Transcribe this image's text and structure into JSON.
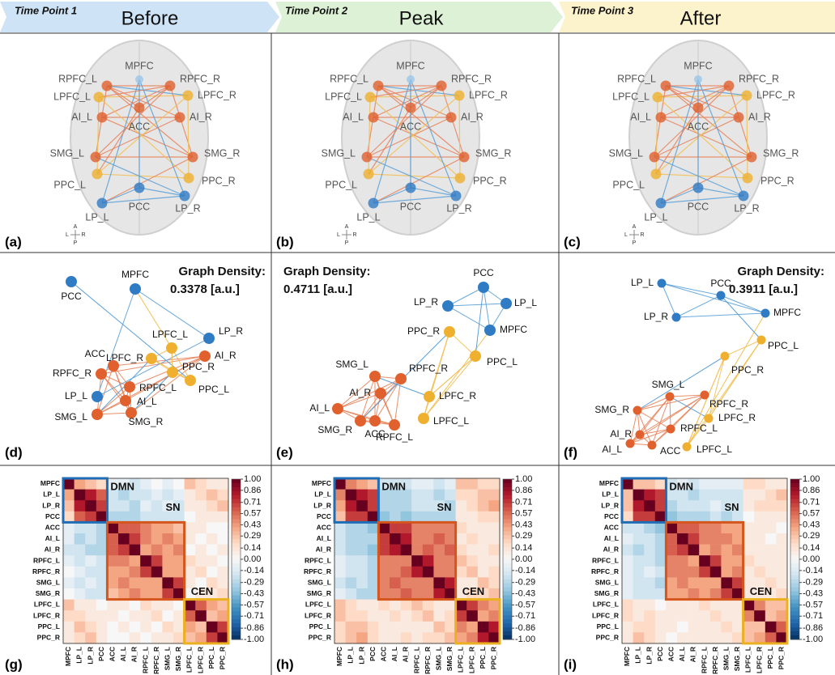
{
  "header": [
    {
      "time_point": "Time Point 1",
      "phase": "Before"
    },
    {
      "time_point": "Time Point 2",
      "phase": "Peak"
    },
    {
      "time_point": "Time Point 3",
      "phase": "After"
    }
  ],
  "brain": {
    "regions": [
      "MPFC",
      "RPFC_L",
      "RPFC_R",
      "LPFC_L",
      "LPFC_R",
      "AI_L",
      "AI_R",
      "ACC",
      "SMG_L",
      "SMG_R",
      "PPC_L",
      "PPC_R",
      "LP_L",
      "PCC",
      "LP_R"
    ],
    "orientation": [
      "A",
      "L",
      "R",
      "P"
    ],
    "panels": [
      "(a)",
      "(b)",
      "(c)"
    ]
  },
  "networks": [
    {
      "panel": "(d)",
      "density_title": "Graph Density:",
      "density": "0.3378 [a.u.]"
    },
    {
      "panel": "(e)",
      "density_title": "Graph Density:",
      "density": "0.4711 [a.u.]"
    },
    {
      "panel": "(f)",
      "density_title": "Graph Density:",
      "density": "0.3911 [a.u.]"
    }
  ],
  "matrices": {
    "labels": [
      "MPFC",
      "LP_L",
      "LP_R",
      "PCC",
      "ACC",
      "AI_L",
      "AI_R",
      "RPFC_L",
      "RPFC_R",
      "SMG_L",
      "SMG_R",
      "LPFC_L",
      "LPFC_R",
      "PPC_L",
      "PPC_R"
    ],
    "modules": [
      "DMN",
      "SN",
      "CEN"
    ],
    "clim": [
      -1,
      1
    ],
    "colorbar_ticks": [
      {
        "value": 1,
        "label": "1.00"
      },
      0.86,
      0.71,
      0.57,
      0.43,
      0.29,
      0.14,
      {
        "value": 0,
        "label": "0.00"
      },
      -0.14,
      -0.29,
      -0.43,
      -0.57,
      -0.71,
      -0.86,
      {
        "value": -1,
        "label": "-1.00"
      }
    ],
    "panels": [
      {
        "panel": "(g)",
        "values": [
          [
            1,
            0.4,
            0.3,
            0.2,
            -0.1,
            -0.1,
            -0.2,
            -0.1,
            0,
            -0.1,
            0,
            0.3,
            0.2,
            0.1,
            0.1
          ],
          [
            0.4,
            1,
            0.8,
            0.6,
            -0.2,
            -0.3,
            -0.2,
            -0.2,
            -0.1,
            -0.2,
            -0.1,
            0.1,
            0.2,
            0.3,
            0.2
          ],
          [
            0.3,
            0.8,
            1,
            0.7,
            -0.2,
            -0.2,
            -0.3,
            -0.1,
            -0.2,
            -0.1,
            -0.2,
            0.1,
            0.1,
            0.2,
            0.3
          ],
          [
            0.2,
            0.6,
            0.7,
            1,
            -0.3,
            -0.3,
            -0.3,
            -0.2,
            -0.2,
            -0.2,
            -0.2,
            0,
            0.1,
            0.1,
            0.1
          ],
          [
            -0.1,
            -0.2,
            -0.2,
            -0.3,
            1,
            0.6,
            0.6,
            0.5,
            0.4,
            0.4,
            0.3,
            0.1,
            0.1,
            0,
            0
          ],
          [
            -0.1,
            -0.3,
            -0.2,
            -0.3,
            0.6,
            1,
            0.7,
            0.5,
            0.4,
            0.5,
            0.4,
            0.1,
            0,
            0.1,
            0
          ],
          [
            -0.2,
            -0.2,
            -0.3,
            -0.3,
            0.6,
            0.7,
            1,
            0.4,
            0.5,
            0.4,
            0.5,
            0,
            0.1,
            0,
            0.1
          ],
          [
            -0.1,
            -0.2,
            -0.1,
            -0.2,
            0.5,
            0.5,
            0.4,
            1,
            0.7,
            0.4,
            0.4,
            0.2,
            0.1,
            0.1,
            0
          ],
          [
            0,
            -0.1,
            -0.2,
            -0.2,
            0.4,
            0.4,
            0.5,
            0.7,
            1,
            0.4,
            0.4,
            0.1,
            0.2,
            0,
            0.1
          ],
          [
            -0.1,
            -0.2,
            -0.1,
            -0.2,
            0.4,
            0.5,
            0.4,
            0.4,
            0.4,
            1,
            0.7,
            0.1,
            0,
            0.2,
            0.1
          ],
          [
            0,
            -0.1,
            -0.2,
            -0.2,
            0.3,
            0.4,
            0.5,
            0.4,
            0.4,
            0.7,
            1,
            0,
            0.1,
            0.1,
            0.2
          ],
          [
            0.3,
            0.1,
            0.1,
            0,
            0.1,
            0.1,
            0,
            0.2,
            0.1,
            0.1,
            0,
            1,
            0.6,
            0.4,
            0.3
          ],
          [
            0.2,
            0.2,
            0.1,
            0.1,
            0.1,
            0,
            0.1,
            0.1,
            0.2,
            0,
            0.1,
            0.6,
            1,
            0.3,
            0.4
          ],
          [
            0.1,
            0.3,
            0.2,
            0.1,
            0,
            0.1,
            0,
            0.1,
            0,
            0.2,
            0.1,
            0.4,
            0.3,
            1,
            0.7
          ],
          [
            0.1,
            0.2,
            0.3,
            0.1,
            0,
            0,
            0.1,
            0,
            0.1,
            0.1,
            0.2,
            0.3,
            0.4,
            0.7,
            1
          ]
        ]
      },
      {
        "panel": "(h)",
        "values": [
          [
            1,
            0.5,
            0.4,
            0.3,
            -0.2,
            -0.2,
            -0.2,
            -0.1,
            -0.1,
            -0.2,
            -0.1,
            0.3,
            0.3,
            0.2,
            0.2
          ],
          [
            0.5,
            1,
            0.8,
            0.7,
            -0.3,
            -0.3,
            -0.3,
            -0.2,
            -0.2,
            -0.3,
            -0.2,
            0.2,
            0.2,
            0.3,
            0.3
          ],
          [
            0.4,
            0.8,
            1,
            0.7,
            -0.3,
            -0.3,
            -0.3,
            -0.2,
            -0.2,
            -0.2,
            -0.3,
            0.1,
            0.2,
            0.3,
            0.4
          ],
          [
            0.3,
            0.7,
            0.7,
            1,
            -0.4,
            -0.3,
            -0.4,
            -0.3,
            -0.3,
            -0.3,
            -0.3,
            0.1,
            0.1,
            0.2,
            0.2
          ],
          [
            -0.2,
            -0.3,
            -0.3,
            -0.4,
            1,
            0.7,
            0.7,
            0.5,
            0.5,
            0.5,
            0.5,
            0.2,
            0.1,
            0.1,
            0.1
          ],
          [
            -0.2,
            -0.3,
            -0.3,
            -0.3,
            0.7,
            1,
            0.8,
            0.5,
            0.5,
            0.6,
            0.5,
            0.1,
            0.2,
            0.1,
            0.1
          ],
          [
            -0.2,
            -0.3,
            -0.3,
            -0.4,
            0.7,
            0.8,
            1,
            0.5,
            0.6,
            0.5,
            0.6,
            0.2,
            0.1,
            0.1,
            0.2
          ],
          [
            -0.1,
            -0.2,
            -0.2,
            -0.3,
            0.5,
            0.5,
            0.5,
            1,
            0.8,
            0.5,
            0.5,
            0.3,
            0.2,
            0.1,
            0.1
          ],
          [
            -0.1,
            -0.2,
            -0.2,
            -0.3,
            0.5,
            0.5,
            0.6,
            0.8,
            1,
            0.5,
            0.5,
            0.2,
            0.3,
            0.1,
            0.2
          ],
          [
            -0.2,
            -0.3,
            -0.2,
            -0.3,
            0.5,
            0.6,
            0.5,
            0.5,
            0.5,
            1,
            0.8,
            0.1,
            0.1,
            0.3,
            0.2
          ],
          [
            -0.1,
            -0.2,
            -0.3,
            -0.3,
            0.5,
            0.5,
            0.6,
            0.5,
            0.5,
            0.8,
            1,
            0.1,
            0.2,
            0.2,
            0.3
          ],
          [
            0.3,
            0.2,
            0.1,
            0.1,
            0.2,
            0.1,
            0.2,
            0.3,
            0.2,
            0.1,
            0.1,
            1,
            0.7,
            0.5,
            0.4
          ],
          [
            0.3,
            0.2,
            0.2,
            0.1,
            0.1,
            0.2,
            0.1,
            0.2,
            0.3,
            0.1,
            0.2,
            0.7,
            1,
            0.4,
            0.5
          ],
          [
            0.2,
            0.3,
            0.3,
            0.2,
            0.1,
            0.1,
            0.1,
            0.1,
            0.1,
            0.3,
            0.2,
            0.5,
            0.4,
            1,
            0.8
          ],
          [
            0.2,
            0.3,
            0.4,
            0.2,
            0.1,
            0.1,
            0.2,
            0.1,
            0.2,
            0.2,
            0.3,
            0.4,
            0.5,
            0.8,
            1
          ]
        ]
      },
      {
        "panel": "(i)",
        "values": [
          [
            1,
            0.3,
            0.3,
            0.2,
            -0.2,
            -0.1,
            -0.2,
            -0.1,
            -0.1,
            -0.1,
            -0.1,
            0.2,
            0.2,
            0.1,
            0.1
          ],
          [
            0.3,
            1,
            0.8,
            0.7,
            -0.2,
            -0.2,
            -0.3,
            -0.2,
            -0.2,
            -0.2,
            -0.2,
            0.1,
            0.1,
            0.2,
            0.3
          ],
          [
            0.3,
            0.8,
            1,
            0.7,
            -0.3,
            -0.2,
            -0.2,
            -0.2,
            -0.1,
            -0.2,
            -0.2,
            0.1,
            0.2,
            0.2,
            0.2
          ],
          [
            0.2,
            0.7,
            0.7,
            1,
            -0.4,
            -0.3,
            -0.3,
            -0.3,
            -0.2,
            -0.3,
            -0.2,
            0,
            0.1,
            0.1,
            0.1
          ],
          [
            -0.2,
            -0.2,
            -0.3,
            -0.4,
            1,
            0.6,
            0.6,
            0.5,
            0.5,
            0.4,
            0.4,
            0.1,
            0.1,
            0.1,
            0
          ],
          [
            -0.1,
            -0.2,
            -0.2,
            -0.3,
            0.6,
            1,
            0.7,
            0.5,
            0.5,
            0.5,
            0.4,
            0.1,
            0.1,
            0,
            0.1
          ],
          [
            -0.2,
            -0.3,
            -0.2,
            -0.3,
            0.6,
            0.7,
            1,
            0.4,
            0.5,
            0.4,
            0.5,
            0.1,
            0.1,
            0.1,
            0.1
          ],
          [
            -0.1,
            -0.2,
            -0.2,
            -0.3,
            0.5,
            0.5,
            0.4,
            1,
            0.7,
            0.4,
            0.4,
            0.2,
            0.1,
            0.1,
            0.1
          ],
          [
            -0.1,
            -0.2,
            -0.1,
            -0.2,
            0.5,
            0.5,
            0.5,
            0.7,
            1,
            0.4,
            0.5,
            0.1,
            0.2,
            0.1,
            0.1
          ],
          [
            -0.1,
            -0.2,
            -0.2,
            -0.3,
            0.4,
            0.5,
            0.4,
            0.4,
            0.4,
            1,
            0.7,
            0.1,
            0.1,
            0.2,
            0.1
          ],
          [
            -0.1,
            -0.2,
            -0.2,
            -0.2,
            0.4,
            0.4,
            0.5,
            0.4,
            0.5,
            0.7,
            1,
            0.1,
            0.1,
            0.1,
            0.2
          ],
          [
            0.2,
            0.1,
            0.1,
            0,
            0.1,
            0.1,
            0.1,
            0.2,
            0.1,
            0.1,
            0.1,
            1,
            0.5,
            0.3,
            0.3
          ],
          [
            0.2,
            0.1,
            0.2,
            0.1,
            0.1,
            0.1,
            0.1,
            0.1,
            0.2,
            0.1,
            0.1,
            0.5,
            1,
            0.3,
            0.4
          ],
          [
            0.1,
            0.2,
            0.2,
            0.1,
            0.1,
            0,
            0.1,
            0.1,
            0.1,
            0.2,
            0.1,
            0.3,
            0.3,
            1,
            0.6
          ],
          [
            0.1,
            0.3,
            0.2,
            0.1,
            0,
            0.1,
            0.1,
            0.1,
            0.1,
            0.1,
            0.2,
            0.3,
            0.4,
            0.6,
            1
          ]
        ]
      }
    ]
  }
}
